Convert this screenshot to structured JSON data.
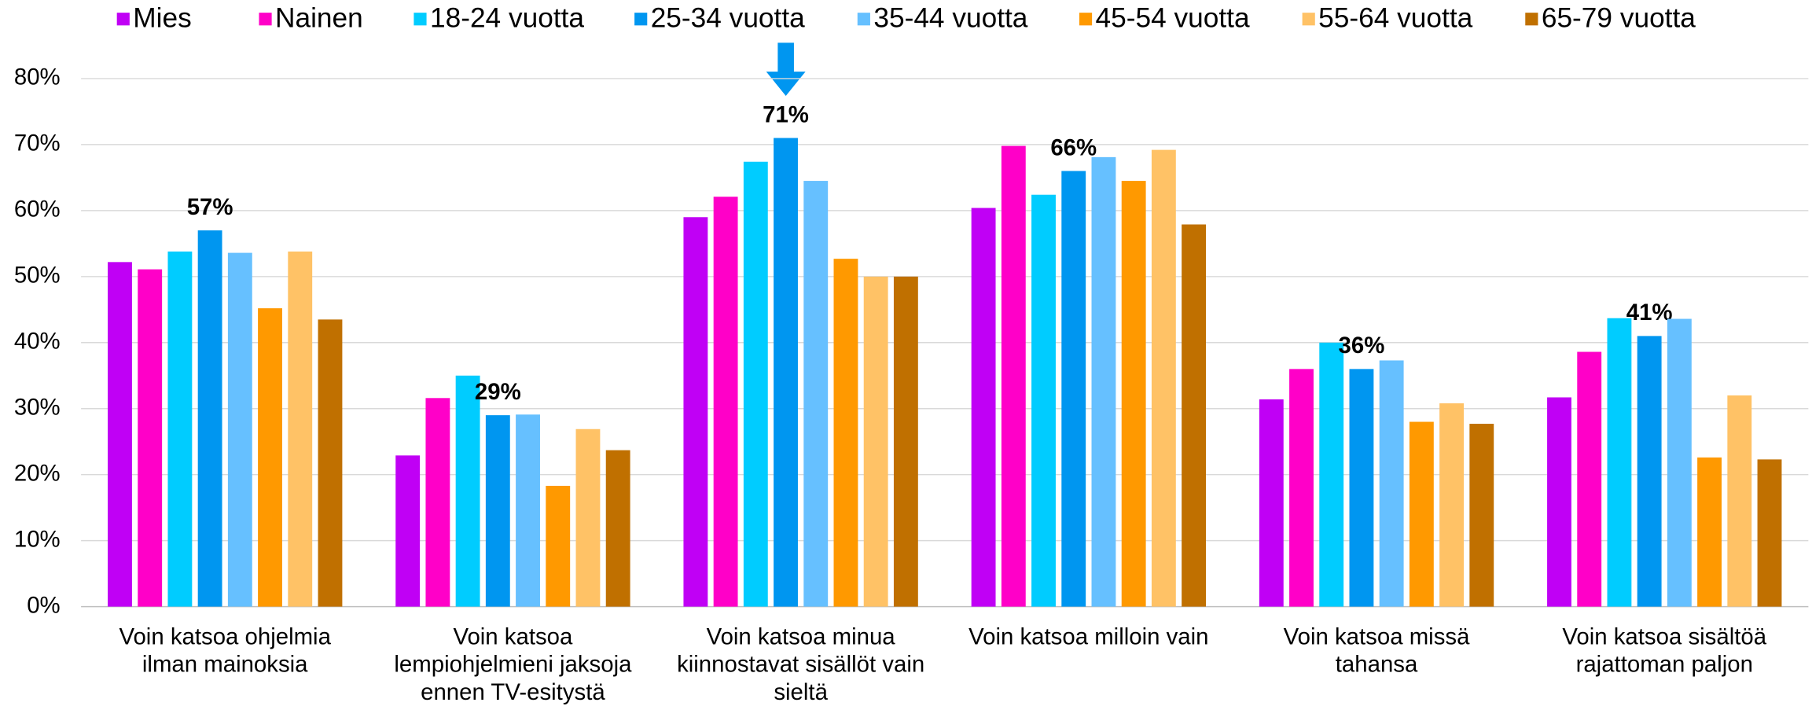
{
  "chart_data": {
    "type": "bar",
    "categories": [
      "Voin katsoa ohjelmia\nilman mainoksia",
      "Voin katsoa\nlempiohjelmieni jaksoja\nennen TV-esitystä",
      "Voin katsoa minua\nkiinnostavat sisällöt vain\nsieltä",
      "Voin katsoa milloin vain",
      "Voin katsoa missä\ntahansa",
      "Voin katsoa sisältöä\nrajattoman paljon"
    ],
    "series": [
      {
        "name": "Mies",
        "color": "#c000f5",
        "values": [
          52.2,
          22.9,
          59,
          60.4,
          31.4,
          31.7
        ]
      },
      {
        "name": "Nainen",
        "color": "#ff00c8",
        "values": [
          51.1,
          31.6,
          62.1,
          69.8,
          36,
          38.6
        ]
      },
      {
        "name": "18-24 vuotta",
        "color": "#00ccff",
        "values": [
          53.8,
          35,
          67.4,
          62.4,
          40,
          43.7
        ]
      },
      {
        "name": "25-34 vuotta",
        "color": "#0096f0",
        "values": [
          57,
          29,
          71,
          66,
          36,
          41
        ],
        "value_labels": [
          "57%",
          "29%",
          "71%",
          "66%",
          "36%",
          "41%"
        ]
      },
      {
        "name": "35-44 vuotta",
        "color": "#66c0ff",
        "values": [
          53.6,
          29.1,
          64.5,
          68.1,
          37.3,
          43.6
        ]
      },
      {
        "name": "45-54 vuotta",
        "color": "#ff9900",
        "values": [
          45.2,
          18.3,
          52.7,
          64.5,
          28,
          22.6
        ]
      },
      {
        "name": "55-64 vuotta",
        "color": "#ffc266",
        "values": [
          53.8,
          26.9,
          50,
          69.2,
          30.8,
          32
        ]
      },
      {
        "name": "65-79 vuotta",
        "color": "#c07000",
        "values": [
          43.5,
          23.7,
          50,
          57.9,
          27.7,
          22.3
        ]
      }
    ],
    "ylim": [
      0,
      80
    ],
    "yticks": [
      {
        "value": 0,
        "label": "0%"
      },
      {
        "value": 10,
        "label": "10%"
      },
      {
        "value": 20,
        "label": "20%"
      },
      {
        "value": 30,
        "label": "30%"
      },
      {
        "value": 40,
        "label": "40%"
      },
      {
        "value": 50,
        "label": "50%"
      },
      {
        "value": 60,
        "label": "60%"
      },
      {
        "value": 70,
        "label": "70%"
      },
      {
        "value": 80,
        "label": "80%"
      }
    ],
    "grid": true,
    "legend": "top"
  }
}
